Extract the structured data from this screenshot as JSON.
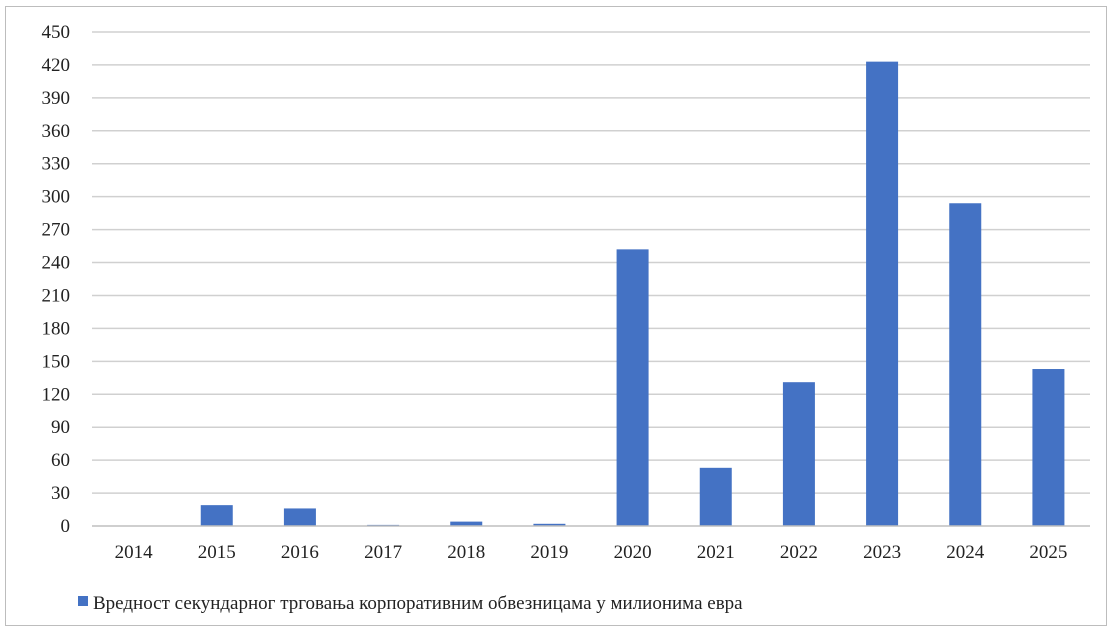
{
  "chart_data": {
    "type": "bar",
    "categories": [
      "2014",
      "2015",
      "2016",
      "2017",
      "2018",
      "2019",
      "2020",
      "2021",
      "2022",
      "2023",
      "2024",
      "2025"
    ],
    "series": [
      {
        "name": "Вредност секундарног трговања корпоративним обвезницама у милионима евра",
        "values": [
          0,
          19,
          16,
          1,
          4,
          2,
          252,
          53,
          131,
          423,
          294,
          143
        ]
      }
    ],
    "ylim": [
      0,
      450
    ],
    "yticks": [
      0,
      30,
      60,
      90,
      120,
      150,
      180,
      210,
      240,
      270,
      300,
      330,
      360,
      390,
      420,
      450
    ],
    "grid": true,
    "legend": "bottom",
    "bar_color": "#4472c4"
  }
}
